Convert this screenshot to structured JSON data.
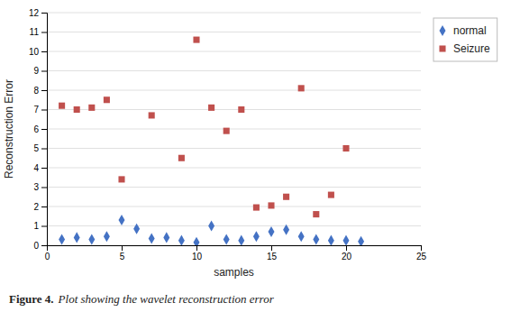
{
  "chart_data": {
    "type": "scatter",
    "x_label": "samples",
    "y_label": "Reconstruction Error",
    "series": [
      {
        "name": "normal",
        "color": "#4472C4",
        "marker": "diamond",
        "x": [
          1,
          2,
          3,
          4,
          5,
          6,
          7,
          8,
          9,
          10,
          11,
          12,
          13,
          14,
          15,
          16,
          17,
          18,
          19,
          20,
          21
        ],
        "values": [
          0.3,
          0.4,
          0.3,
          0.45,
          1.3,
          0.85,
          0.35,
          0.4,
          0.25,
          0.15,
          1.0,
          0.3,
          0.25,
          0.45,
          0.7,
          0.8,
          0.45,
          0.3,
          0.25,
          0.25,
          0.2
        ]
      },
      {
        "name": "Seizure",
        "color": "#C0504D",
        "marker": "square",
        "x": [
          1,
          2,
          3,
          4,
          5,
          7,
          9,
          10,
          11,
          12,
          13,
          14,
          15,
          16,
          17,
          18,
          19,
          20
        ],
        "values": [
          7.2,
          7.0,
          7.1,
          7.5,
          3.4,
          6.7,
          4.5,
          10.6,
          7.1,
          5.9,
          7.0,
          1.95,
          2.05,
          2.5,
          8.1,
          1.6,
          2.6,
          5.0
        ]
      }
    ],
    "xlim": [
      0,
      25
    ],
    "xticks": [
      0,
      5,
      10,
      15,
      20,
      25
    ],
    "ylim": [
      0,
      12
    ],
    "yticks": [
      0,
      1,
      2,
      3,
      4,
      5,
      6,
      7,
      8,
      9,
      10,
      11,
      12
    ],
    "grid": true,
    "legend": "right",
    "annotations": [
      "Figure 4.",
      "Plot showing the wavelet reconstruction error"
    ]
  }
}
